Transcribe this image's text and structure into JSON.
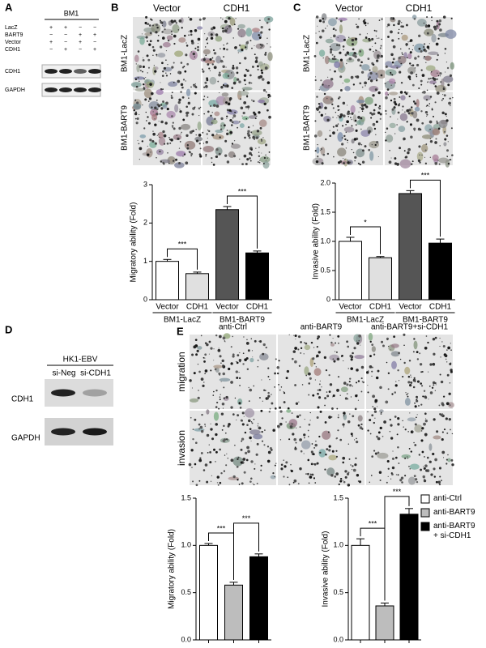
{
  "panels": {
    "A": {
      "label": "A",
      "title": "BM1",
      "rows": [
        {
          "name": "LacZ",
          "signs": [
            "+",
            "+",
            "−",
            "−"
          ]
        },
        {
          "name": "BART9",
          "signs": [
            "−",
            "−",
            "+",
            "+"
          ]
        },
        {
          "name": "Vector",
          "signs": [
            "+",
            "−",
            "+",
            "−"
          ]
        },
        {
          "name": "CDH1",
          "signs": [
            "−",
            "+",
            "−",
            "+"
          ]
        }
      ],
      "bands": [
        "CDH1",
        "GAPDH"
      ]
    },
    "B": {
      "label": "B",
      "columns": [
        "Vector",
        "CDH1"
      ],
      "rows": [
        "BM1-LacZ",
        "BM1-BART9"
      ]
    },
    "C": {
      "label": "C",
      "columns": [
        "Vector",
        "CDH1"
      ],
      "rows": [
        "BM1-LacZ",
        "BM1-BART9"
      ]
    },
    "D": {
      "label": "D",
      "title": "HK1-EBV",
      "columns": [
        "si-Neg",
        "si-CDH1"
      ],
      "bands": [
        "CDH1",
        "GAPDH"
      ]
    },
    "E": {
      "label": "E",
      "columns": [
        "anti-Ctrl",
        "anti-BART9",
        "anti-BART9+si-CDH1"
      ],
      "rows": [
        "migration",
        "invasion"
      ],
      "legend": {
        "labels": [
          "anti-Ctrl",
          "anti-BART9",
          "anti-BART9\n+ si-CDH1"
        ],
        "colors": [
          "#ffffff",
          "#bdbdbd",
          "#000000"
        ]
      }
    }
  },
  "chart_data": [
    {
      "type": "bar",
      "ylabel": "Migratory ability (Fold)",
      "categories": [
        "Vector",
        "CDH1",
        "Vector",
        "CDH1"
      ],
      "groups": [
        "BM1-LacZ",
        "BM1-BART9"
      ],
      "values": [
        1.0,
        0.68,
        2.35,
        1.22
      ],
      "errors": [
        0.05,
        0.04,
        0.08,
        0.05
      ],
      "colors": [
        "#ffffff",
        "#e0e0e0",
        "#555555",
        "#000000"
      ],
      "ylim": [
        0,
        3
      ],
      "yticks": [
        0,
        1,
        2,
        3
      ],
      "significance": [
        "***",
        "***"
      ]
    },
    {
      "type": "bar",
      "ylabel": "Invasive ability (Fold)",
      "categories": [
        "Vector",
        "CDH1",
        "Vector",
        "CDH1"
      ],
      "groups": [
        "BM1-LacZ",
        "BM1-BART9"
      ],
      "values": [
        1.0,
        0.72,
        1.82,
        0.97
      ],
      "errors": [
        0.07,
        0.02,
        0.05,
        0.07
      ],
      "colors": [
        "#ffffff",
        "#e0e0e0",
        "#555555",
        "#000000"
      ],
      "ylim": [
        0,
        2
      ],
      "yticks": [
        0,
        0.5,
        {
          "value": 1,
          "label": "1.0"
        },
        1.5,
        {
          "value": 2,
          "label": "2.0"
        }
      ],
      "significance": [
        "*",
        "***"
      ]
    },
    {
      "type": "bar",
      "ylabel": "Migratory ability (Fold)",
      "categories": [
        null,
        null,
        null
      ],
      "values": [
        1.0,
        0.58,
        0.88
      ],
      "errors": [
        0.02,
        0.03,
        0.03
      ],
      "colors": [
        "#ffffff",
        "#bdbdbd",
        "#000000"
      ],
      "ylim": [
        0,
        1.5
      ],
      "yticks": [
        {
          "value": 0,
          "label": "0.0"
        },
        0.5,
        {
          "value": 1,
          "label": "1.0"
        },
        1.5
      ],
      "significance": [
        "***",
        "***"
      ]
    },
    {
      "type": "bar",
      "ylabel": "Invasive ability (Fold)",
      "categories": [
        null,
        null,
        null
      ],
      "values": [
        1.0,
        0.36,
        1.33
      ],
      "errors": [
        0.07,
        0.03,
        0.06
      ],
      "colors": [
        "#ffffff",
        "#bdbdbd",
        "#000000"
      ],
      "ylim": [
        0,
        1.5
      ],
      "yticks": [
        {
          "value": 0,
          "label": "0.0"
        },
        0.5,
        {
          "value": 1,
          "label": "1.0"
        },
        1.5
      ],
      "significance": [
        "***",
        "***"
      ]
    }
  ]
}
